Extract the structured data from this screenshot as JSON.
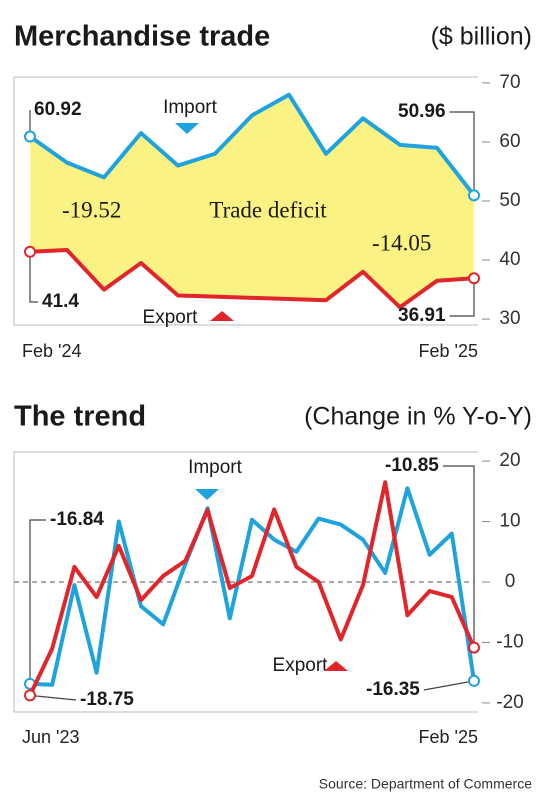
{
  "chart_data": [
    {
      "type": "line",
      "title": "Merchandise trade",
      "subtitle": "($ billion)",
      "categories": [
        "Feb '24",
        null,
        null,
        null,
        null,
        null,
        null,
        null,
        null,
        null,
        null,
        null,
        "Feb '25"
      ],
      "series": [
        {
          "name": "Import",
          "color": "#1fa3de",
          "values": [
            60.92,
            56.5,
            54,
            61.5,
            56,
            58,
            64.5,
            68,
            58,
            64,
            59.5,
            59,
            50.96
          ]
        },
        {
          "name": "Export",
          "color": "#e0262b",
          "values": [
            41.4,
            41.7,
            35,
            39.5,
            34,
            33.8,
            33.6,
            33.4,
            33.2,
            38,
            32,
            36.5,
            36.91
          ]
        }
      ],
      "area_label": "Trade deficit",
      "deficit_values": [
        -19.52,
        -14.05
      ],
      "ylim": [
        29,
        71
      ],
      "yticks": [
        30,
        40,
        50,
        60,
        70
      ]
    },
    {
      "type": "line",
      "title": "The trend",
      "subtitle": "(Change in % Y-o-Y)",
      "categories": [
        "Jun '23",
        null,
        null,
        null,
        null,
        null,
        null,
        null,
        null,
        null,
        null,
        null,
        null,
        null,
        null,
        null,
        null,
        null,
        null,
        null,
        "Feb '25"
      ],
      "series": [
        {
          "name": "Import",
          "color": "#1fa3de",
          "values": [
            -16.84,
            -17,
            -0.5,
            -15,
            10,
            -4,
            -7,
            3,
            12.2,
            -6,
            10.3,
            7,
            5,
            10.5,
            9.5,
            7,
            1.5,
            15.5,
            4.5,
            8,
            -16.35
          ]
        },
        {
          "name": "Export",
          "color": "#e0262b",
          "values": [
            -18.75,
            -11,
            2.5,
            -2.5,
            6,
            -3,
            1,
            3.5,
            11.9,
            -1,
            1,
            12,
            2.5,
            0,
            -9.5,
            -0.5,
            16.5,
            -5.5,
            -1.5,
            -2.5,
            -10.85
          ]
        }
      ],
      "ylim": [
        -21.5,
        21.5
      ],
      "yticks": [
        -20,
        -10,
        0,
        10,
        20
      ]
    }
  ],
  "source": "Source: Department of Commerce"
}
